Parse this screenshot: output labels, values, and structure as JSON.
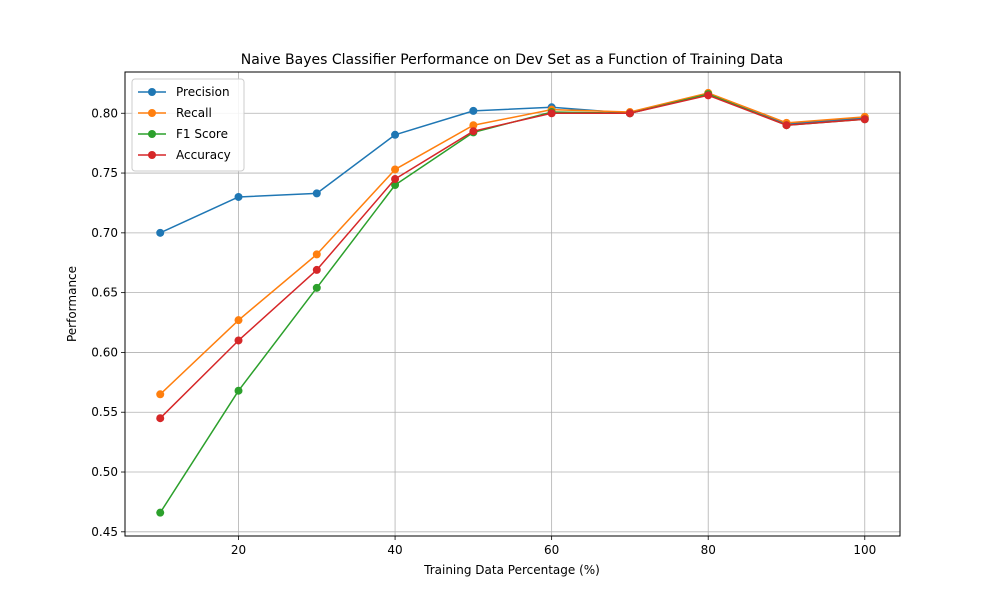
{
  "chart_data": {
    "type": "line",
    "title": "Naive Bayes Classifier Performance on Dev Set as a Function of Training Data",
    "xlabel": "Training Data Percentage (%)",
    "ylabel": "Performance",
    "x": [
      10,
      20,
      30,
      40,
      50,
      60,
      70,
      80,
      90,
      100
    ],
    "xlim": [
      5.5,
      104.5
    ],
    "ylim": [
      0.4465,
      0.8345
    ],
    "xticks": [
      20,
      40,
      60,
      80,
      100
    ],
    "yticks": [
      0.45,
      0.5,
      0.55,
      0.6,
      0.65,
      0.7,
      0.75,
      0.8
    ],
    "xtick_labels": [
      "20",
      "40",
      "60",
      "80",
      "100"
    ],
    "ytick_labels": [
      "0.45",
      "0.50",
      "0.55",
      "0.60",
      "0.65",
      "0.70",
      "0.75",
      "0.80"
    ],
    "grid": true,
    "legend_position": "top-left",
    "marker": "circle",
    "series": [
      {
        "name": "Precision",
        "color": "#1f77b4",
        "values": [
          0.7,
          0.73,
          0.733,
          0.782,
          0.802,
          0.805,
          0.8,
          0.816,
          0.791,
          0.796
        ]
      },
      {
        "name": "Recall",
        "color": "#ff7f0e",
        "values": [
          0.565,
          0.627,
          0.682,
          0.753,
          0.79,
          0.803,
          0.801,
          0.817,
          0.792,
          0.797
        ]
      },
      {
        "name": "F1 Score",
        "color": "#2ca02c",
        "values": [
          0.466,
          0.568,
          0.654,
          0.74,
          0.784,
          0.801,
          0.8,
          0.816,
          0.79,
          0.795
        ]
      },
      {
        "name": "Accuracy",
        "color": "#d62728",
        "values": [
          0.545,
          0.61,
          0.669,
          0.745,
          0.785,
          0.8,
          0.8,
          0.815,
          0.79,
          0.795
        ]
      }
    ]
  }
}
